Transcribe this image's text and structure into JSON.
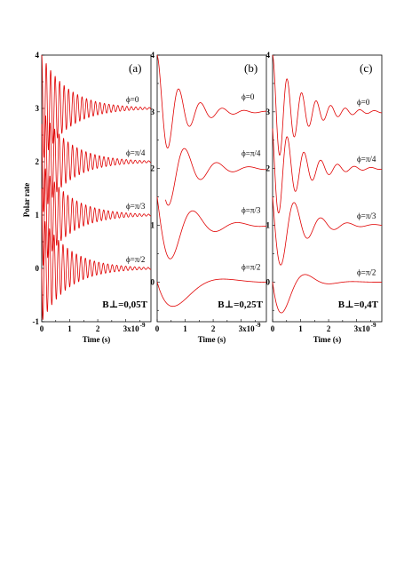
{
  "figure": {
    "ylabel": "Polar rate",
    "colors": {
      "curve": "#e00000",
      "axis": "#000000",
      "background": "#ffffff"
    }
  },
  "chart_data": [
    {
      "type": "line",
      "panel_tag": "(a)",
      "field_label": "B⊥=0,05T",
      "xlabel": "Time (s)",
      "xlim": [
        0,
        3.9
      ],
      "ylim": [
        -1,
        4
      ],
      "x_ticks": [
        {
          "value": 0,
          "label": "0"
        },
        {
          "value": 1,
          "label": "1"
        },
        {
          "value": 2,
          "label": "2"
        },
        {
          "value": 3,
          "label": "3x10"
        }
      ],
      "x_exponent": "-9",
      "y_ticks": [
        {
          "value": -1,
          "label": "-1"
        },
        {
          "value": 0,
          "label": "0"
        },
        {
          "value": 1,
          "label": "1"
        },
        {
          "value": 2,
          "label": "2"
        },
        {
          "value": 3,
          "label": "3"
        },
        {
          "value": 4,
          "label": "4"
        }
      ],
      "curve_labels": [
        {
          "text": "ϕ=0",
          "y": 3.12
        },
        {
          "text": "ϕ=π/4",
          "y": 2.12
        },
        {
          "text": "ϕ=π/3",
          "y": 1.12
        },
        {
          "text": "ϕ=π/2",
          "y": 0.12
        }
      ],
      "series": [
        {
          "offset": 3,
          "amplitude": 1,
          "period_ns": 0.16,
          "decay_ns": 0.95,
          "phase": 0,
          "x_range": [
            0,
            3.9
          ]
        },
        {
          "offset": 2,
          "amplitude": 1,
          "period_ns": 0.16,
          "decay_ns": 0.95,
          "phase": 0.785,
          "x_range": [
            0,
            3.9
          ]
        },
        {
          "offset": 1,
          "amplitude": 1,
          "period_ns": 0.16,
          "decay_ns": 0.95,
          "phase": 1.047,
          "x_range": [
            0,
            3.9
          ]
        },
        {
          "offset": 0,
          "amplitude": 1,
          "period_ns": 0.16,
          "decay_ns": 0.95,
          "phase": 1.571,
          "x_range": [
            0,
            3.9
          ]
        }
      ]
    },
    {
      "type": "line",
      "panel_tag": "(b)",
      "field_label": "B⊥=0,25T",
      "xlabel": "Time (s)",
      "xlim": [
        0,
        3.9
      ],
      "ylim": [
        -0.7,
        4
      ],
      "x_ticks": [
        {
          "value": 0,
          "label": "0"
        },
        {
          "value": 1,
          "label": "1"
        },
        {
          "value": 2,
          "label": "2"
        },
        {
          "value": 3,
          "label": "3x10"
        }
      ],
      "x_exponent": "-9",
      "y_ticks": [
        {
          "value": 0,
          "label": "0"
        },
        {
          "value": 1,
          "label": "1"
        },
        {
          "value": 2,
          "label": "2"
        },
        {
          "value": 3,
          "label": "3"
        },
        {
          "value": 4,
          "label": "4"
        }
      ],
      "curve_labels": [
        {
          "text": "ϕ=0",
          "y": 3.22
        },
        {
          "text": "ϕ=π/4",
          "y": 2.22
        },
        {
          "text": "ϕ=π/3",
          "y": 1.22
        },
        {
          "text": "ϕ=π/2",
          "y": 0.22
        }
      ],
      "series": [
        {
          "offset": 3,
          "amplitude": 1,
          "period_ns": 0.78,
          "decay_ns": 0.85,
          "phase": 0,
          "x_range": [
            0,
            3.9
          ]
        },
        {
          "offset": 2,
          "amplitude": 1,
          "period_ns": 1.15,
          "decay_ns": 0.95,
          "phase": 0.785,
          "x_range": [
            0.3,
            3.9
          ]
        },
        {
          "offset": 1,
          "amplitude": 1,
          "period_ns": 1.6,
          "decay_ns": 0.95,
          "phase": 1.047,
          "x_range": [
            0,
            3.9
          ]
        },
        {
          "offset": 0,
          "amplitude": 1,
          "period_ns": 3.6,
          "decay_ns": 0.85,
          "phase": 1.571,
          "x_range": [
            0,
            3.9
          ]
        }
      ]
    },
    {
      "type": "line",
      "panel_tag": "(c)",
      "field_label": "B⊥=0,4T",
      "xlabel": "Time (s)",
      "xlim": [
        0,
        3.9
      ],
      "ylim": [
        -0.7,
        4
      ],
      "x_ticks": [
        {
          "value": 0,
          "label": "0"
        },
        {
          "value": 1,
          "label": "1"
        },
        {
          "value": 2,
          "label": "2"
        },
        {
          "value": 3,
          "label": "3x10"
        }
      ],
      "x_exponent": "-9",
      "y_ticks": [
        {
          "value": 0,
          "label": "0"
        },
        {
          "value": 1,
          "label": "1"
        },
        {
          "value": 2,
          "label": "2"
        },
        {
          "value": 3,
          "label": "3"
        },
        {
          "value": 4,
          "label": "4"
        }
      ],
      "curve_labels": [
        {
          "text": "ϕ=0",
          "y": 3.12
        },
        {
          "text": "ϕ=π/4",
          "y": 2.12
        },
        {
          "text": "ϕ=π/3",
          "y": 1.12
        },
        {
          "text": "ϕ=π/2",
          "y": 0.12
        }
      ],
      "series": [
        {
          "offset": 3,
          "amplitude": 1,
          "period_ns": 0.52,
          "decay_ns": 0.95,
          "phase": 0,
          "x_range": [
            0,
            3.9
          ]
        },
        {
          "offset": 2,
          "amplitude": 1,
          "period_ns": 0.6,
          "decay_ns": 0.9,
          "phase": 0.785,
          "x_range": [
            0,
            3.9
          ]
        },
        {
          "offset": 1,
          "amplitude": 1,
          "period_ns": 0.95,
          "decay_ns": 0.85,
          "phase": 1.047,
          "x_range": [
            0,
            3.9
          ]
        },
        {
          "offset": 0,
          "amplitude": 1,
          "period_ns": 1.7,
          "decay_ns": 0.6,
          "phase": 1.571,
          "x_range": [
            0,
            3.9
          ]
        }
      ]
    }
  ]
}
